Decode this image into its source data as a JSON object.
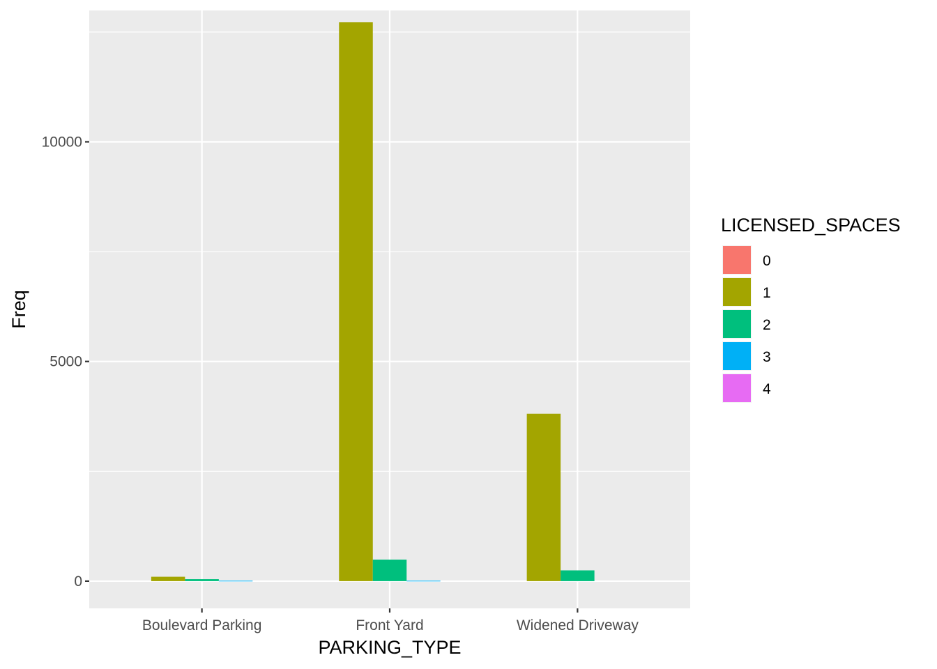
{
  "chart_data": {
    "type": "bar",
    "title": "",
    "xlabel": "PARKING_TYPE",
    "ylabel": "Freq",
    "categories": [
      "Boulevard Parking",
      "Front Yard",
      "Widened Driveway"
    ],
    "ylim": [
      -620,
      12990
    ],
    "yticks": [
      0,
      5000,
      10000
    ],
    "ytick_labels": [
      "0",
      "5000",
      "10000"
    ],
    "grid": true,
    "legend": {
      "title": "LICENSED_SPACES",
      "position": "right",
      "entries": [
        "0",
        "1",
        "2",
        "3",
        "4"
      ]
    },
    "series": [
      {
        "name": "0",
        "color": "#F8766D",
        "values": [
          0,
          0,
          0
        ]
      },
      {
        "name": "1",
        "color": "#A3A500",
        "values": [
          100,
          12720,
          3810
        ]
      },
      {
        "name": "2",
        "color": "#00BF7D",
        "values": [
          45,
          490,
          245
        ]
      },
      {
        "name": "3",
        "color": "#00B0F6",
        "values": [
          10,
          10,
          0
        ]
      },
      {
        "name": "4",
        "color": "#E76BF3",
        "values": [
          0,
          0,
          0
        ]
      }
    ]
  }
}
